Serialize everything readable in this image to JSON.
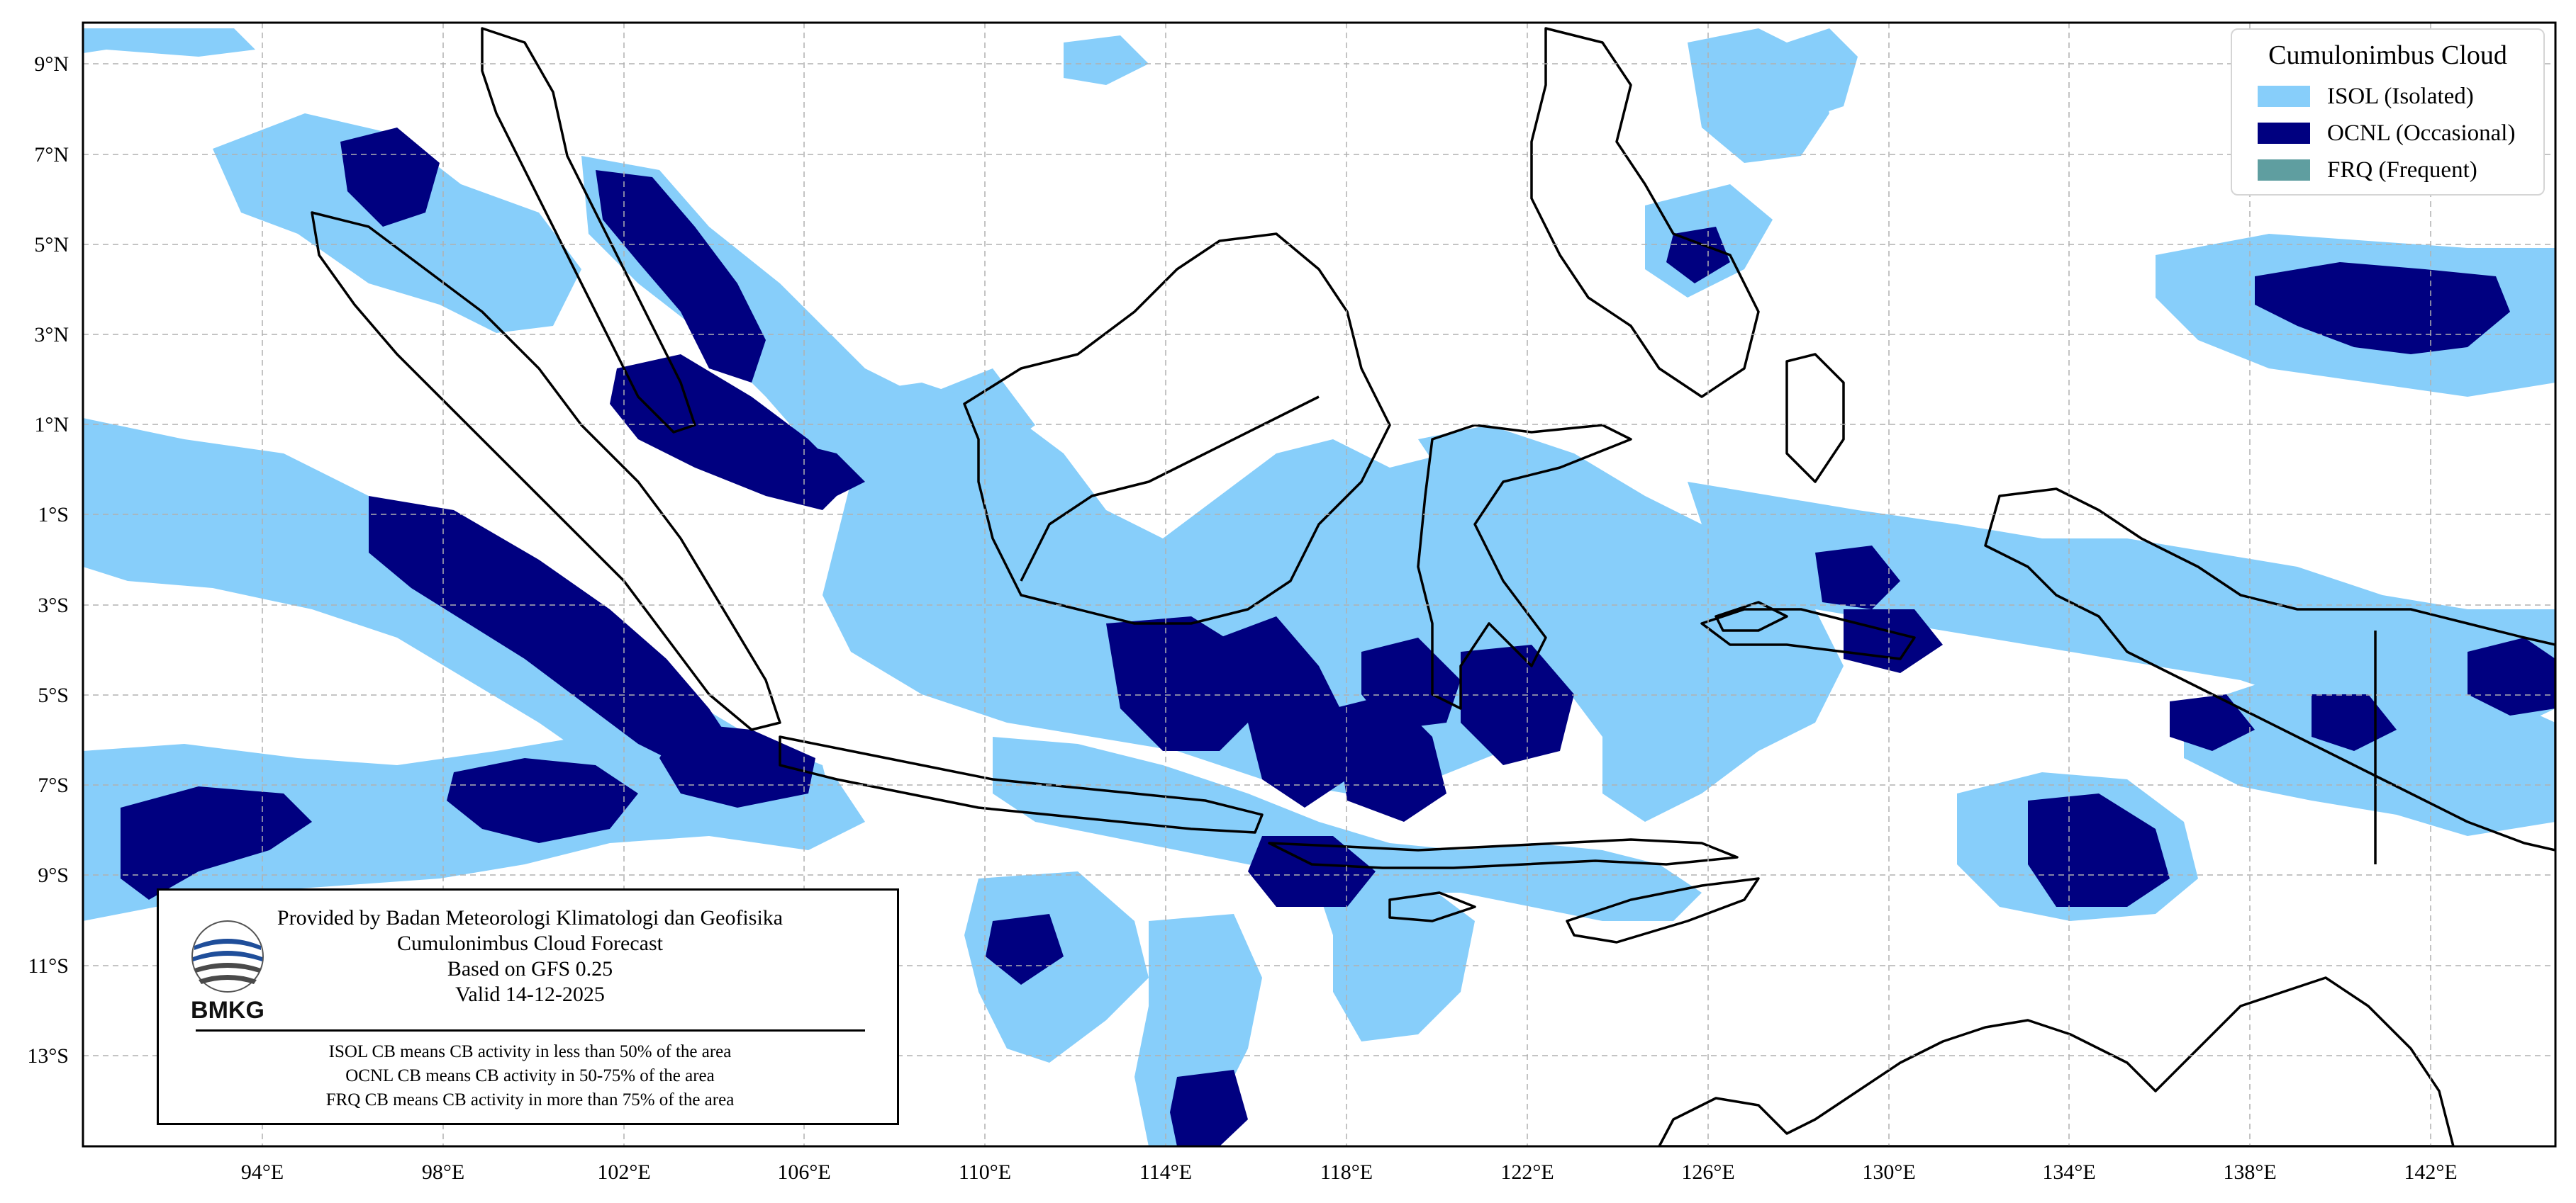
{
  "map": {
    "lon_labels": [
      "94°E",
      "98°E",
      "102°E",
      "106°E",
      "110°E",
      "114°E",
      "118°E",
      "122°E",
      "126°E",
      "130°E",
      "134°E",
      "138°E",
      "142°E"
    ],
    "lat_labels": [
      "9°N",
      "7°N",
      "5°N",
      "3°N",
      "1°N",
      "1°S",
      "3°S",
      "5°S",
      "7°S",
      "9°S",
      "11°S",
      "13°S"
    ],
    "colors": {
      "isol": "#87cefa",
      "ocnl": "#000080",
      "frq": "#5f9ea0",
      "coast": "#000000",
      "grid": "#b0b0b0"
    }
  },
  "legend": {
    "title": "Cumulonimbus Cloud",
    "items": [
      {
        "label": "ISOL (Isolated)",
        "color": "#87cefa"
      },
      {
        "label": "OCNL (Occasional)",
        "color": "#000080"
      },
      {
        "label": "FRQ (Frequent)",
        "color": "#5f9ea0"
      }
    ]
  },
  "info": {
    "line1": "Provided by Badan Meteorologi Klimatologi dan Geofisika",
    "line2": "Cumulonimbus Cloud Forecast",
    "line3": "Based on GFS 0.25",
    "line4": "Valid 14-12-2025",
    "logo_text": "BMKG",
    "note1": "ISOL CB means CB activity in less than 50% of the area",
    "note2": "OCNL CB means CB activity in 50-75% of the area",
    "note3": "FRQ CB means CB activity in more than 75% of the area"
  }
}
